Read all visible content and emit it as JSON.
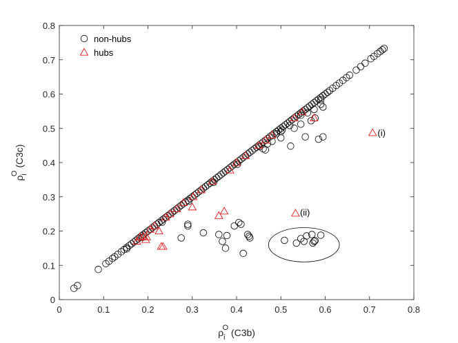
{
  "chart_data": {
    "type": "scatter",
    "xlabel": {
      "main": "ρ",
      "sub": "i",
      "sup": "O",
      "suffix": " (C3b)"
    },
    "ylabel": {
      "main": "ρ",
      "sub": "i",
      "sup": "O",
      "suffix": " (C3c)"
    },
    "xlim": [
      0,
      0.8
    ],
    "ylim": [
      0,
      0.8
    ],
    "xticks": [
      "0",
      "0.1",
      "0.2",
      "0.3",
      "0.4",
      "0.5",
      "0.6",
      "0.7",
      "0.8"
    ],
    "yticks": [
      "0",
      "0.1",
      "0.2",
      "0.3",
      "0.4",
      "0.5",
      "0.6",
      "0.7",
      "0.8"
    ],
    "grid": false,
    "legend_position": "top-left",
    "colors": {
      "nonhubs": "#000000",
      "hubs": "#e41a1c"
    },
    "series": [
      {
        "name": "non-hubs",
        "marker": "circle",
        "points": [
          [
            0.033,
            0.033
          ],
          [
            0.041,
            0.041
          ],
          [
            0.088,
            0.088
          ],
          [
            0.105,
            0.105
          ],
          [
            0.112,
            0.112
          ],
          [
            0.12,
            0.12
          ],
          [
            0.125,
            0.125
          ],
          [
            0.132,
            0.132
          ],
          [
            0.14,
            0.14
          ],
          [
            0.146,
            0.146
          ],
          [
            0.152,
            0.152
          ],
          [
            0.158,
            0.158
          ],
          [
            0.163,
            0.163
          ],
          [
            0.168,
            0.168
          ],
          [
            0.173,
            0.173
          ],
          [
            0.178,
            0.178
          ],
          [
            0.182,
            0.182
          ],
          [
            0.186,
            0.186
          ],
          [
            0.19,
            0.19
          ],
          [
            0.195,
            0.195
          ],
          [
            0.2,
            0.2
          ],
          [
            0.205,
            0.205
          ],
          [
            0.21,
            0.21
          ],
          [
            0.215,
            0.215
          ],
          [
            0.22,
            0.22
          ],
          [
            0.225,
            0.225
          ],
          [
            0.23,
            0.23
          ],
          [
            0.235,
            0.235
          ],
          [
            0.24,
            0.24
          ],
          [
            0.245,
            0.245
          ],
          [
            0.25,
            0.25
          ],
          [
            0.255,
            0.255
          ],
          [
            0.26,
            0.26
          ],
          [
            0.265,
            0.265
          ],
          [
            0.27,
            0.27
          ],
          [
            0.275,
            0.275
          ],
          [
            0.28,
            0.28
          ],
          [
            0.285,
            0.285
          ],
          [
            0.29,
            0.29
          ],
          [
            0.295,
            0.295
          ],
          [
            0.3,
            0.3
          ],
          [
            0.305,
            0.305
          ],
          [
            0.31,
            0.31
          ],
          [
            0.315,
            0.315
          ],
          [
            0.32,
            0.32
          ],
          [
            0.325,
            0.325
          ],
          [
            0.33,
            0.33
          ],
          [
            0.335,
            0.335
          ],
          [
            0.34,
            0.34
          ],
          [
            0.345,
            0.345
          ],
          [
            0.35,
            0.35
          ],
          [
            0.355,
            0.355
          ],
          [
            0.36,
            0.36
          ],
          [
            0.365,
            0.365
          ],
          [
            0.37,
            0.37
          ],
          [
            0.375,
            0.375
          ],
          [
            0.38,
            0.38
          ],
          [
            0.385,
            0.385
          ],
          [
            0.39,
            0.39
          ],
          [
            0.395,
            0.395
          ],
          [
            0.4,
            0.4
          ],
          [
            0.405,
            0.405
          ],
          [
            0.41,
            0.41
          ],
          [
            0.415,
            0.415
          ],
          [
            0.42,
            0.42
          ],
          [
            0.425,
            0.425
          ],
          [
            0.43,
            0.43
          ],
          [
            0.435,
            0.435
          ],
          [
            0.44,
            0.44
          ],
          [
            0.445,
            0.445
          ],
          [
            0.45,
            0.45
          ],
          [
            0.455,
            0.455
          ],
          [
            0.46,
            0.46
          ],
          [
            0.465,
            0.465
          ],
          [
            0.47,
            0.47
          ],
          [
            0.475,
            0.475
          ],
          [
            0.48,
            0.48
          ],
          [
            0.485,
            0.485
          ],
          [
            0.49,
            0.49
          ],
          [
            0.495,
            0.495
          ],
          [
            0.5,
            0.5
          ],
          [
            0.505,
            0.505
          ],
          [
            0.51,
            0.51
          ],
          [
            0.515,
            0.515
          ],
          [
            0.52,
            0.52
          ],
          [
            0.525,
            0.525
          ],
          [
            0.53,
            0.53
          ],
          [
            0.535,
            0.535
          ],
          [
            0.54,
            0.54
          ],
          [
            0.545,
            0.545
          ],
          [
            0.55,
            0.55
          ],
          [
            0.555,
            0.555
          ],
          [
            0.56,
            0.56
          ],
          [
            0.565,
            0.565
          ],
          [
            0.57,
            0.57
          ],
          [
            0.575,
            0.575
          ],
          [
            0.58,
            0.58
          ],
          [
            0.585,
            0.585
          ],
          [
            0.59,
            0.59
          ],
          [
            0.595,
            0.595
          ],
          [
            0.6,
            0.6
          ],
          [
            0.605,
            0.605
          ],
          [
            0.61,
            0.61
          ],
          [
            0.617,
            0.617
          ],
          [
            0.625,
            0.625
          ],
          [
            0.632,
            0.632
          ],
          [
            0.64,
            0.64
          ],
          [
            0.648,
            0.648
          ],
          [
            0.655,
            0.655
          ],
          [
            0.67,
            0.67
          ],
          [
            0.68,
            0.68
          ],
          [
            0.69,
            0.69
          ],
          [
            0.703,
            0.703
          ],
          [
            0.71,
            0.71
          ],
          [
            0.718,
            0.718
          ],
          [
            0.724,
            0.724
          ],
          [
            0.729,
            0.729
          ],
          [
            0.733,
            0.733
          ],
          [
            0.152,
            0.148
          ],
          [
            0.188,
            0.182
          ],
          [
            0.232,
            0.226
          ],
          [
            0.292,
            0.287
          ],
          [
            0.348,
            0.342
          ],
          [
            0.402,
            0.395
          ],
          [
            0.452,
            0.446
          ],
          [
            0.49,
            0.484
          ],
          [
            0.545,
            0.538
          ],
          [
            0.59,
            0.583
          ],
          [
            0.275,
            0.18
          ],
          [
            0.29,
            0.22
          ],
          [
            0.29,
            0.215
          ],
          [
            0.325,
            0.195
          ],
          [
            0.36,
            0.19
          ],
          [
            0.368,
            0.17
          ],
          [
            0.375,
            0.15
          ],
          [
            0.378,
            0.187
          ],
          [
            0.395,
            0.215
          ],
          [
            0.405,
            0.225
          ],
          [
            0.41,
            0.22
          ],
          [
            0.415,
            0.135
          ],
          [
            0.425,
            0.19
          ],
          [
            0.428,
            0.185
          ],
          [
            0.43,
            0.18
          ],
          [
            0.508,
            0.173
          ],
          [
            0.535,
            0.165
          ],
          [
            0.545,
            0.178
          ],
          [
            0.552,
            0.17
          ],
          [
            0.558,
            0.186
          ],
          [
            0.57,
            0.19
          ],
          [
            0.572,
            0.165
          ],
          [
            0.575,
            0.17
          ],
          [
            0.577,
            0.172
          ],
          [
            0.59,
            0.188
          ],
          [
            0.46,
            0.44
          ],
          [
            0.465,
            0.437
          ],
          [
            0.5,
            0.472
          ],
          [
            0.503,
            0.495
          ],
          [
            0.52,
            0.508
          ],
          [
            0.522,
            0.448
          ],
          [
            0.53,
            0.5
          ],
          [
            0.545,
            0.512
          ],
          [
            0.555,
            0.475
          ],
          [
            0.568,
            0.522
          ],
          [
            0.577,
            0.53
          ],
          [
            0.585,
            0.468
          ],
          [
            0.59,
            0.57
          ],
          [
            0.595,
            0.475
          ],
          [
            0.595,
            0.562
          ],
          [
            0.56,
            0.545
          ],
          [
            0.575,
            0.555
          ],
          [
            0.48,
            0.462
          ],
          [
            0.47,
            0.455
          ],
          [
            0.5,
            0.49
          ]
        ]
      },
      {
        "name": "hubs",
        "marker": "triangle",
        "points": [
          [
            0.175,
            0.17
          ],
          [
            0.182,
            0.183
          ],
          [
            0.19,
            0.185
          ],
          [
            0.195,
            0.175
          ],
          [
            0.197,
            0.183
          ],
          [
            0.205,
            0.205
          ],
          [
            0.215,
            0.215
          ],
          [
            0.225,
            0.2
          ],
          [
            0.23,
            0.155
          ],
          [
            0.234,
            0.155
          ],
          [
            0.24,
            0.24
          ],
          [
            0.25,
            0.25
          ],
          [
            0.265,
            0.265
          ],
          [
            0.28,
            0.283
          ],
          [
            0.3,
            0.27
          ],
          [
            0.302,
            0.3
          ],
          [
            0.32,
            0.32
          ],
          [
            0.345,
            0.345
          ],
          [
            0.36,
            0.245
          ],
          [
            0.372,
            0.258
          ],
          [
            0.385,
            0.378
          ],
          [
            0.4,
            0.4
          ],
          [
            0.42,
            0.42
          ],
          [
            0.45,
            0.45
          ],
          [
            0.465,
            0.465
          ],
          [
            0.48,
            0.48
          ],
          [
            0.53,
            0.53
          ],
          [
            0.533,
            0.252
          ],
          [
            0.548,
            0.548
          ],
          [
            0.575,
            0.53
          ],
          [
            0.707,
            0.487
          ]
        ]
      }
    ],
    "annotations": [
      {
        "text": "(i)",
        "x": 0.715,
        "y": 0.487
      },
      {
        "text": "(ii)",
        "x": 0.54,
        "y": 0.255
      }
    ],
    "highlight_ellipse": {
      "cx": 0.552,
      "cy": 0.16,
      "rx": 0.08,
      "ry": 0.05
    }
  }
}
